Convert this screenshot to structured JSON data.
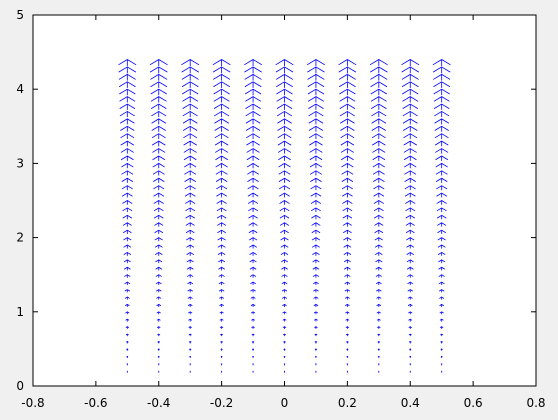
{
  "chart_data": {
    "type": "quiver",
    "title": "",
    "xlabel": "",
    "ylabel": "",
    "xlim": [
      -0.8,
      0.8
    ],
    "ylim": [
      0,
      5
    ],
    "grid": false,
    "x_ticks": [
      -0.8,
      -0.6,
      -0.4,
      -0.2,
      0,
      0.2,
      0.4,
      0.6,
      0.8
    ],
    "y_ticks": [
      0,
      1,
      2,
      3,
      4,
      5
    ],
    "x_tick_labels": [
      "-0.8",
      "-0.6",
      "-0.4",
      "-0.2",
      "0",
      "0.2",
      "0.4",
      "0.6",
      "0.8"
    ],
    "y_tick_labels": [
      "0",
      "1",
      "2",
      "3",
      "4",
      "5"
    ],
    "arrow_color": "#0000ff",
    "columns_x": [
      -0.5,
      -0.4,
      -0.3,
      -0.2,
      -0.1,
      0,
      0.1,
      0.2,
      0.3,
      0.4,
      0.5
    ],
    "y_start": 0.2,
    "y_end": 4.4,
    "y_step": 0.1,
    "direction": "up",
    "magnitude_scales_with_y": true
  }
}
